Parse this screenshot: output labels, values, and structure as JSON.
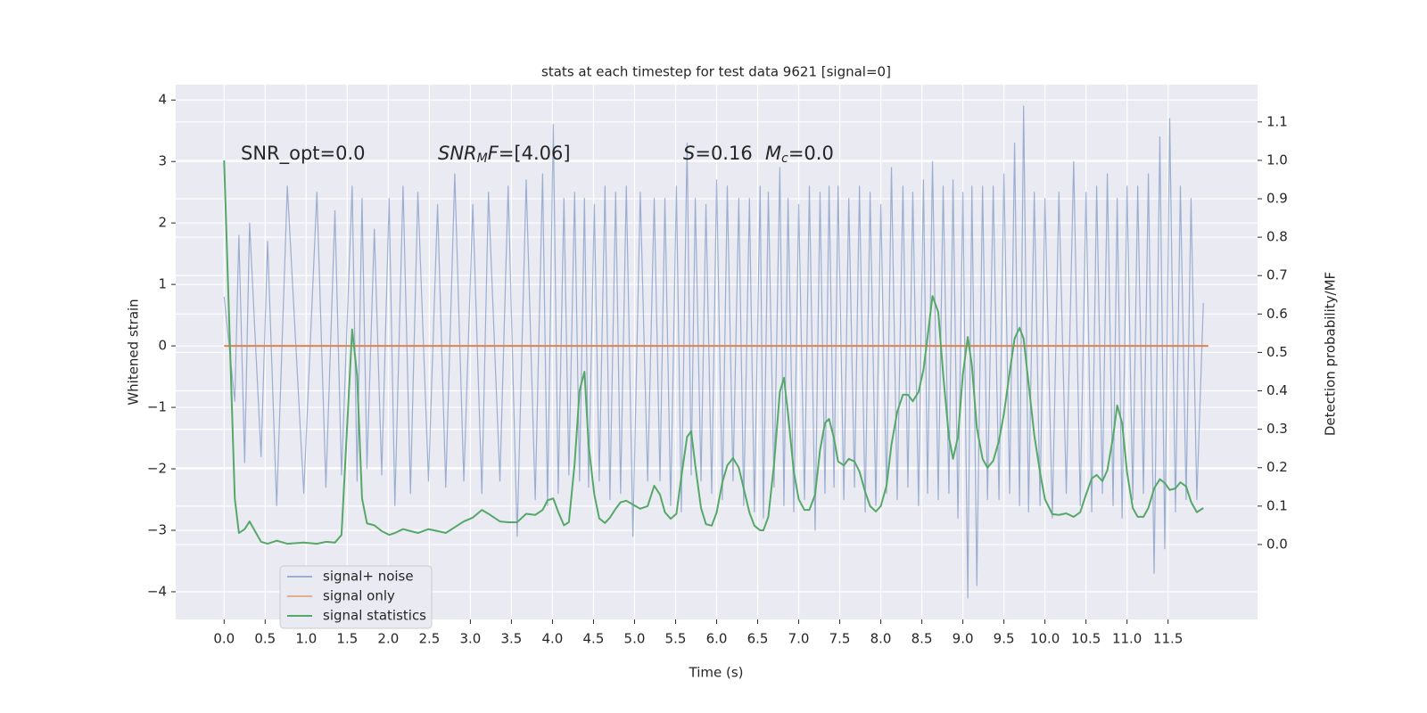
{
  "chart_data": {
    "type": "line",
    "title": "stats at each timestep for test data 9621 [signal=0]",
    "xlabel": "Time (s)",
    "ylabel": "Whitened strain",
    "y2label": "Detection probability/MF",
    "annotations": [
      [
        {
          "text": "SNR_opt=0.0"
        }
      ],
      [
        {
          "text": "SNR",
          "style": "italic"
        },
        {
          "text": "M",
          "style": "sub"
        },
        {
          "text": "F",
          "style": "italic"
        },
        {
          "text": "=[4.06]"
        }
      ],
      [
        {
          "text": "S",
          "style": "italic"
        },
        {
          "text": "=0.16"
        }
      ],
      [
        {
          "text": "M",
          "style": "italic"
        },
        {
          "text": "c",
          "style": "sub"
        },
        {
          "text": "=0.0"
        }
      ]
    ],
    "xlim": [
      -0.59,
      12.59
    ],
    "ylim": [
      -4.45,
      4.25
    ],
    "y2lim": [
      -0.195,
      1.197
    ],
    "xticks": [
      {
        "value": 0,
        "label": "0.0"
      },
      0.5,
      {
        "value": 1,
        "label": "1.0"
      },
      1.5,
      {
        "value": 2,
        "label": "2.0"
      },
      2.5,
      {
        "value": 3,
        "label": "3.0"
      },
      3.5,
      {
        "value": 4,
        "label": "4.0"
      },
      4.5,
      {
        "value": 5,
        "label": "5.0"
      },
      5.5,
      {
        "value": 6,
        "label": "6.0"
      },
      6.5,
      {
        "value": 7,
        "label": "7.0"
      },
      7.5,
      {
        "value": 8,
        "label": "8.0"
      },
      8.5,
      {
        "value": 9,
        "label": "9.0"
      },
      9.5,
      {
        "value": 10,
        "label": "10.0"
      },
      10.5,
      {
        "value": 11,
        "label": "11.0"
      },
      11.5
    ],
    "yticks": [
      {
        "value": -4,
        "label": "−4"
      },
      {
        "value": -3,
        "label": "−3"
      },
      {
        "value": -2,
        "label": "−2"
      },
      {
        "value": -1,
        "label": "−1"
      },
      0,
      1,
      2,
      3,
      4
    ],
    "y2ticks": [
      {
        "value": 0,
        "label": "0.0"
      },
      0.1,
      0.2,
      0.3,
      0.4,
      0.5,
      0.6,
      0.7,
      0.8,
      0.9,
      {
        "value": 1,
        "label": "1.0"
      },
      1.1
    ],
    "grid": true,
    "legend_loc": "lower left",
    "x": [
      0,
      0.13,
      0.18,
      0.25,
      0.31,
      0.45,
      0.53,
      0.64,
      0.77,
      0.97,
      1.13,
      1.24,
      1.35,
      1.43,
      1.56,
      1.62,
      1.68,
      1.74,
      1.83,
      1.92,
      2.01,
      2.08,
      2.18,
      2.27,
      2.36,
      2.49,
      2.6,
      2.7,
      2.81,
      2.92,
      3.03,
      3.14,
      3.22,
      3.36,
      3.46,
      3.57,
      3.68,
      3.79,
      3.88,
      3.94,
      4.01,
      4.07,
      4.14,
      4.2,
      4.27,
      4.33,
      4.39,
      4.44,
      4.51,
      4.57,
      4.64,
      4.7,
      4.77,
      4.83,
      4.9,
      4.98,
      5.07,
      5.16,
      5.24,
      5.31,
      5.37,
      5.44,
      5.51,
      5.57,
      5.64,
      5.69,
      5.74,
      5.81,
      5.87,
      5.94,
      6.0,
      6.07,
      6.13,
      6.2,
      6.27,
      6.33,
      6.4,
      6.46,
      6.53,
      6.57,
      6.63,
      6.7,
      6.77,
      6.82,
      6.87,
      6.94,
      7.0,
      7.07,
      7.13,
      7.2,
      7.26,
      7.32,
      7.37,
      7.43,
      7.48,
      7.55,
      7.61,
      7.68,
      7.74,
      7.81,
      7.87,
      7.94,
      8.0,
      8.07,
      8.13,
      8.2,
      8.27,
      8.33,
      8.39,
      8.46,
      8.52,
      8.57,
      8.63,
      8.7,
      8.76,
      8.83,
      8.88,
      8.94,
      9.0,
      9.06,
      9.11,
      9.17,
      9.24,
      9.3,
      9.37,
      9.44,
      9.5,
      9.57,
      9.63,
      9.69,
      9.74,
      9.8,
      9.87,
      9.94,
      10.0,
      10.09,
      10.17,
      10.26,
      10.35,
      10.43,
      10.5,
      10.57,
      10.63,
      10.7,
      10.76,
      10.83,
      10.88,
      10.94,
      11.0,
      11.07,
      11.13,
      11.2,
      11.26,
      11.33,
      11.4,
      11.46,
      11.52,
      11.59,
      11.65,
      11.72,
      11.78,
      11.85,
      11.93
    ],
    "series": [
      {
        "name": "signal+ noise",
        "color": "#4c72b0",
        "values": [
          0.8,
          -0.9,
          1.8,
          -1.9,
          2.0,
          -1.8,
          1.7,
          -2.6,
          2.6,
          -2.4,
          2.5,
          -2.3,
          2.2,
          -2.1,
          2.6,
          -2.2,
          2.4,
          -2.0,
          1.9,
          -2.1,
          2.4,
          -2.6,
          2.6,
          -2.4,
          2.5,
          -2.2,
          2.3,
          -2.3,
          2.8,
          -2.2,
          2.3,
          -2.4,
          2.5,
          -2.2,
          2.6,
          -3.1,
          2.7,
          -2.5,
          2.8,
          -2.6,
          3.6,
          -2.4,
          2.4,
          -2.1,
          2.5,
          -2.2,
          2.4,
          -2.3,
          2.3,
          -2.2,
          2.6,
          -2.5,
          2.5,
          -2.4,
          2.6,
          -3.1,
          2.5,
          -2.2,
          2.4,
          -2.2,
          2.4,
          -2.6,
          2.6,
          -2.7,
          3.3,
          -2.1,
          2.4,
          -2.2,
          2.3,
          -2.4,
          2.7,
          -2.5,
          2.6,
          -2.2,
          2.4,
          -2.6,
          2.4,
          -2.7,
          2.6,
          -2.8,
          2.5,
          -2.3,
          2.9,
          -2.6,
          2.4,
          -2.7,
          2.3,
          -2.5,
          2.6,
          -3.0,
          2.5,
          -2.4,
          2.6,
          -2.3,
          2.6,
          -2.5,
          2.4,
          -2.3,
          2.6,
          -2.7,
          2.5,
          -2.6,
          2.3,
          -2.4,
          2.9,
          -2.5,
          2.6,
          -2.3,
          2.5,
          -2.6,
          2.7,
          -2.4,
          3.0,
          -2.5,
          2.6,
          -2.4,
          2.7,
          -2.8,
          2.5,
          -4.1,
          2.6,
          -3.9,
          2.6,
          -2.5,
          2.6,
          -2.5,
          2.8,
          -2.4,
          3.3,
          -2.6,
          3.9,
          -2.7,
          2.5,
          -2.6,
          2.4,
          -2.8,
          2.5,
          -2.4,
          3.0,
          -2.6,
          2.5,
          -2.7,
          2.6,
          -2.4,
          2.8,
          -2.6,
          2.4,
          -2.8,
          2.6,
          -2.5,
          2.6,
          -2.4,
          2.8,
          -3.7,
          3.4,
          -3.3,
          3.7,
          -2.7,
          2.6,
          -2.5,
          2.4,
          -2.5,
          0.7
        ]
      },
      {
        "name": "signal only",
        "color": "#dd8452",
        "x": [
          0,
          11.99
        ],
        "values": [
          0,
          0
        ]
      },
      {
        "name": "signal statistics",
        "color": "#55a868",
        "axis": "y2",
        "values": [
          1.0,
          0.12,
          0.03,
          0.04,
          0.06,
          0.007,
          0.002,
          0.01,
          0.002,
          0.005,
          0.002,
          0.007,
          0.005,
          0.025,
          0.56,
          0.44,
          0.12,
          0.055,
          0.05,
          0.035,
          0.025,
          0.03,
          0.04,
          0.035,
          0.03,
          0.04,
          0.035,
          0.03,
          0.045,
          0.06,
          0.07,
          0.09,
          0.08,
          0.06,
          0.058,
          0.058,
          0.08,
          0.077,
          0.09,
          0.115,
          0.12,
          0.085,
          0.05,
          0.058,
          0.21,
          0.4,
          0.45,
          0.26,
          0.13,
          0.068,
          0.056,
          0.07,
          0.093,
          0.11,
          0.114,
          0.104,
          0.093,
          0.1,
          0.153,
          0.13,
          0.084,
          0.067,
          0.08,
          0.176,
          0.28,
          0.295,
          0.206,
          0.095,
          0.053,
          0.049,
          0.083,
          0.162,
          0.206,
          0.225,
          0.2,
          0.146,
          0.083,
          0.049,
          0.037,
          0.037,
          0.072,
          0.21,
          0.397,
          0.434,
          0.34,
          0.19,
          0.118,
          0.09,
          0.09,
          0.13,
          0.246,
          0.316,
          0.327,
          0.276,
          0.216,
          0.206,
          0.223,
          0.216,
          0.19,
          0.137,
          0.1,
          0.086,
          0.1,
          0.153,
          0.26,
          0.345,
          0.39,
          0.39,
          0.373,
          0.397,
          0.455,
          0.54,
          0.647,
          0.605,
          0.443,
          0.28,
          0.223,
          0.28,
          0.443,
          0.54,
          0.466,
          0.304,
          0.223,
          0.2,
          0.218,
          0.27,
          0.34,
          0.448,
          0.536,
          0.564,
          0.536,
          0.42,
          0.285,
          0.188,
          0.118,
          0.079,
          0.077,
          0.081,
          0.072,
          0.084,
          0.13,
          0.172,
          0.181,
          0.165,
          0.193,
          0.28,
          0.362,
          0.316,
          0.188,
          0.095,
          0.072,
          0.072,
          0.095,
          0.146,
          0.17,
          0.16,
          0.142,
          0.146,
          0.162,
          0.151,
          0.111,
          0.084,
          0.095
        ]
      }
    ]
  }
}
